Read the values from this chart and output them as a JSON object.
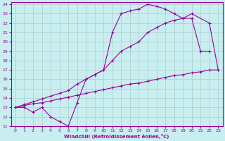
{
  "xlabel": "Windchill (Refroidissement éolien,°C)",
  "bg_color": "#c8eef0",
  "grid_color": "#aacccc",
  "line_color": "#990099",
  "xlim": [
    -0.5,
    23.5
  ],
  "ylim": [
    11,
    24.2
  ],
  "xticks": [
    0,
    1,
    2,
    3,
    4,
    5,
    6,
    7,
    8,
    9,
    10,
    11,
    12,
    13,
    14,
    15,
    16,
    17,
    18,
    19,
    20,
    21,
    22,
    23
  ],
  "yticks": [
    11,
    12,
    13,
    14,
    15,
    16,
    17,
    18,
    19,
    20,
    21,
    22,
    23,
    24
  ],
  "line1_x": [
    0,
    1,
    2,
    3,
    4,
    5,
    6,
    7,
    8,
    9,
    10,
    11,
    12,
    13,
    14,
    15,
    16,
    17,
    18,
    19,
    20,
    21,
    22
  ],
  "line1_y": [
    13,
    13,
    12.5,
    13,
    12,
    11.5,
    11,
    13.5,
    16,
    16.5,
    17,
    21,
    23,
    23.3,
    23.5,
    24,
    23.8,
    23.5,
    23,
    22.5,
    22.5,
    19,
    19
  ],
  "line2_x": [
    0,
    1,
    2,
    3,
    4,
    5,
    6,
    7,
    8,
    9,
    10,
    11,
    12,
    13,
    14,
    15,
    16,
    17,
    18,
    19,
    20,
    22,
    23
  ],
  "line2_y": [
    13,
    13.3,
    13.6,
    13.9,
    14.2,
    14.5,
    14.8,
    15.5,
    16,
    16.5,
    17,
    18,
    19,
    19.5,
    20,
    21,
    21.5,
    22,
    22.3,
    22.5,
    23,
    22,
    17
  ],
  "line3_x": [
    0,
    1,
    2,
    3,
    4,
    5,
    6,
    7,
    8,
    9,
    10,
    11,
    12,
    13,
    14,
    15,
    16,
    17,
    18,
    19,
    20,
    21,
    22,
    23
  ],
  "line3_y": [
    13,
    13.2,
    13.4,
    13.5,
    13.7,
    13.9,
    14.1,
    14.3,
    14.5,
    14.7,
    14.9,
    15.1,
    15.3,
    15.5,
    15.6,
    15.8,
    16.0,
    16.2,
    16.4,
    16.5,
    16.7,
    16.8,
    17.0,
    17.0
  ]
}
